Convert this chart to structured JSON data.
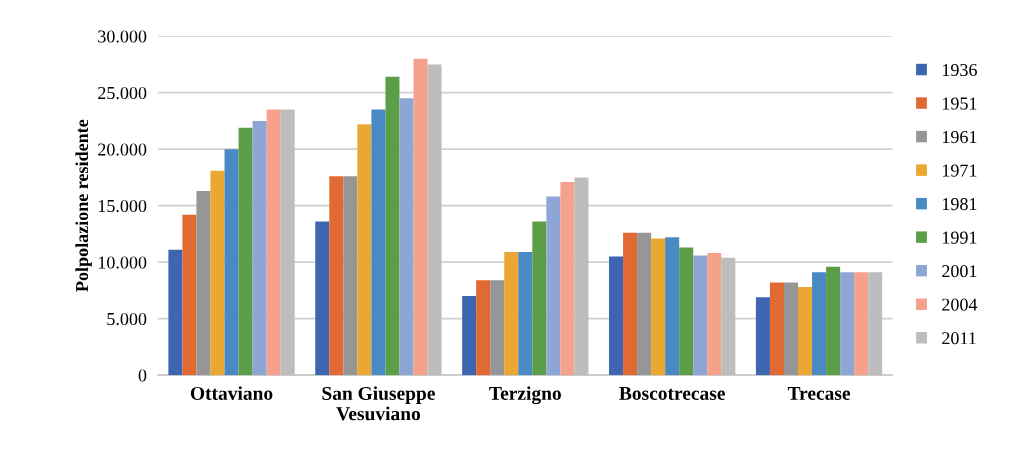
{
  "chart_data": {
    "type": "bar",
    "ylabel": "Polpolazione residente",
    "categories": [
      "Ottaviano",
      "San Giuseppe\nVesuviano",
      "Terzigno",
      "Boscotrecase",
      "Trecase"
    ],
    "series": [
      {
        "name": "1936",
        "color": "#3d65b0",
        "values": [
          11100,
          13600,
          7000,
          10500,
          6900
        ]
      },
      {
        "name": "1951",
        "color": "#e06a32",
        "values": [
          14200,
          17600,
          8400,
          12600,
          8200
        ]
      },
      {
        "name": "1961",
        "color": "#969696",
        "values": [
          16300,
          17600,
          8400,
          12600,
          8200
        ]
      },
      {
        "name": "1971",
        "color": "#eaa833",
        "values": [
          18100,
          22200,
          10900,
          12100,
          7800
        ]
      },
      {
        "name": "1981",
        "color": "#4a8ac4",
        "values": [
          20000,
          23500,
          10900,
          12200,
          9100
        ]
      },
      {
        "name": "1991",
        "color": "#5c9e48",
        "values": [
          21900,
          26400,
          13600,
          11300,
          9600
        ]
      },
      {
        "name": "2001",
        "color": "#8ea6d6",
        "values": [
          22500,
          24500,
          15800,
          10600,
          9100
        ]
      },
      {
        "name": "2004",
        "color": "#f4a28c",
        "values": [
          23500,
          28000,
          17100,
          10800,
          9100
        ]
      },
      {
        "name": "2011",
        "color": "#bdbdbd",
        "values": [
          23500,
          27500,
          17500,
          10400,
          9100
        ]
      }
    ],
    "ylim": [
      0,
      30000
    ],
    "yticks": [
      {
        "value": 0,
        "label": "0"
      },
      {
        "value": 5000,
        "label": "5.000"
      },
      {
        "value": 10000,
        "label": "10.000"
      },
      {
        "value": 15000,
        "label": "15.000"
      },
      {
        "value": 20000,
        "label": "20.000"
      },
      {
        "value": 25000,
        "label": "25.000"
      },
      {
        "value": 30000,
        "label": "30.000"
      }
    ],
    "grid": "y",
    "legend": "right"
  }
}
